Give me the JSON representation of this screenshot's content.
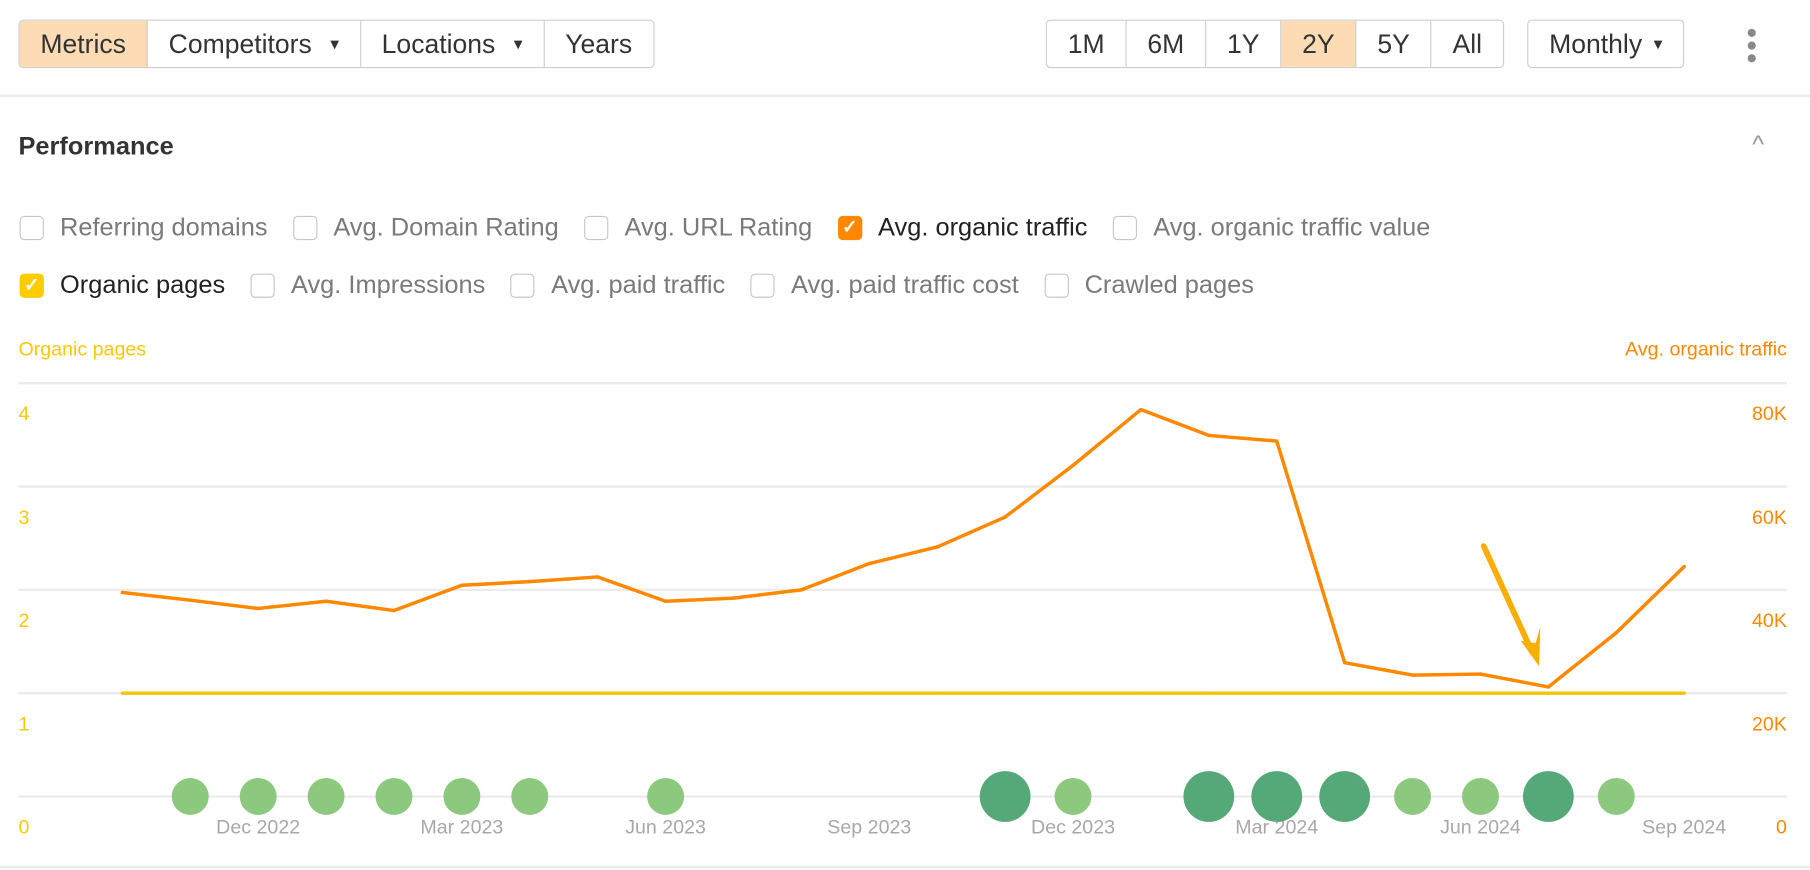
{
  "toolbar": {
    "left_tabs": [
      {
        "label": "Metrics",
        "active": true,
        "dropdown": false
      },
      {
        "label": "Competitors",
        "active": false,
        "dropdown": true
      },
      {
        "label": "Locations",
        "active": false,
        "dropdown": true
      },
      {
        "label": "Years",
        "active": false,
        "dropdown": false
      }
    ],
    "ranges": [
      {
        "label": "1M",
        "active": false
      },
      {
        "label": "6M",
        "active": false
      },
      {
        "label": "1Y",
        "active": false
      },
      {
        "label": "2Y",
        "active": true
      },
      {
        "label": "5Y",
        "active": false
      },
      {
        "label": "All",
        "active": false
      }
    ],
    "interval": "Monthly",
    "caret": "▾",
    "more_icon": "kebab-icon"
  },
  "section": {
    "title": "Performance",
    "collapse_icon": "chevron-up-icon",
    "collapse_glyph": "^"
  },
  "metrics": {
    "row1": [
      {
        "label": "Referring domains",
        "checked": false
      },
      {
        "label": "Avg. Domain Rating",
        "checked": false
      },
      {
        "label": "Avg. URL Rating",
        "checked": false
      },
      {
        "label": "Avg. organic traffic",
        "checked": true,
        "color": "#ff8800"
      },
      {
        "label": "Avg. organic traffic value",
        "checked": false
      }
    ],
    "row2": [
      {
        "label": "Organic pages",
        "checked": true,
        "color": "#ffcc00"
      },
      {
        "label": "Avg. Impressions",
        "checked": false
      },
      {
        "label": "Avg. paid traffic",
        "checked": false
      },
      {
        "label": "Avg. paid traffic cost",
        "checked": false
      },
      {
        "label": "Crawled pages",
        "checked": false
      }
    ],
    "check_glyph": "✓"
  },
  "chart_data": {
    "type": "line",
    "left_axis": {
      "label": "Organic pages",
      "ticks": [
        "0",
        "1",
        "2",
        "3",
        "4"
      ],
      "range": [
        0,
        4
      ],
      "color": "#ffc800"
    },
    "right_axis": {
      "label": "Avg. organic traffic",
      "ticks": [
        "0",
        "20K",
        "40K",
        "60K",
        "80K"
      ],
      "range": [
        0,
        80000
      ],
      "color": "#ff8800"
    },
    "x_ticks": [
      "Dec 2022",
      "Mar 2023",
      "Jun 2023",
      "Sep 2023",
      "Dec 2023",
      "Mar 2024",
      "Jun 2024",
      "Sep 2024"
    ],
    "x": [
      "Oct 2022",
      "Nov 2022",
      "Dec 2022",
      "Jan 2023",
      "Feb 2023",
      "Mar 2023",
      "Apr 2023",
      "May 2023",
      "Jun 2023",
      "Jul 2023",
      "Aug 2023",
      "Sep 2023",
      "Oct 2023",
      "Nov 2023",
      "Dec 2023",
      "Jan 2024",
      "Feb 2024",
      "Mar 2024",
      "Apr 2024",
      "May 2024",
      "Jun 2024",
      "Jul 2024",
      "Aug 2024",
      "Sep 2024"
    ],
    "grid": true,
    "series": [
      {
        "name": "Avg. organic traffic",
        "axis": "right",
        "color": "#ff8800",
        "values": [
          39500,
          38000,
          36400,
          37800,
          36000,
          40900,
          41600,
          42500,
          37800,
          38400,
          40000,
          45100,
          48300,
          54100,
          64100,
          74900,
          69900,
          68800,
          25900,
          23500,
          23700,
          21200,
          31700,
          44500
        ]
      },
      {
        "name": "Organic pages",
        "axis": "left",
        "color": "#f5c400",
        "values": [
          1,
          1,
          1,
          1,
          1,
          1,
          1,
          1,
          1,
          1,
          1,
          1,
          1,
          1,
          1,
          1,
          1,
          1,
          1,
          1,
          1,
          1,
          1,
          1
        ]
      }
    ],
    "update_markers": [
      {
        "month": "Nov 2022",
        "major": false
      },
      {
        "month": "Dec 2022",
        "major": false
      },
      {
        "month": "Jan 2023",
        "major": false
      },
      {
        "month": "Feb 2023",
        "major": false
      },
      {
        "month": "Mar 2023",
        "major": false
      },
      {
        "month": "Apr 2023",
        "major": false
      },
      {
        "month": "Jun 2023",
        "major": false
      },
      {
        "month": "Nov 2023",
        "major": true
      },
      {
        "month": "Dec 2023",
        "major": false
      },
      {
        "month": "Feb 2024",
        "major": true
      },
      {
        "month": "Mar 2024",
        "major": true
      },
      {
        "month": "Apr 2024",
        "major": true
      },
      {
        "month": "May 2024",
        "major": false
      },
      {
        "month": "Jun 2024",
        "major": false
      },
      {
        "month": "Jul 2024",
        "major": true
      },
      {
        "month": "Aug 2024",
        "major": false
      }
    ],
    "marker_colors": {
      "minor": "#8cc97f",
      "major": "#55a877"
    },
    "annotation": {
      "type": "arrow",
      "points_to": "Jul 2024",
      "color": "#fbad00"
    }
  }
}
